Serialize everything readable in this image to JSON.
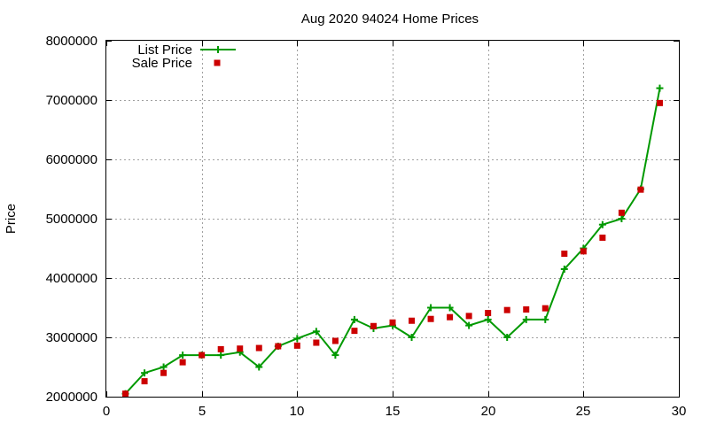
{
  "chart_data": {
    "type": "line",
    "title": "Aug 2020 94024 Home Prices",
    "xlabel": "",
    "ylabel": "Price",
    "xlim": [
      0,
      30
    ],
    "ylim": [
      2000000,
      8000000
    ],
    "xticks": [
      0,
      5,
      10,
      15,
      20,
      25,
      30
    ],
    "yticks": [
      2000000,
      3000000,
      4000000,
      5000000,
      6000000,
      7000000,
      8000000
    ],
    "grid": true,
    "legend_position": "top-left",
    "series": [
      {
        "name": "List Price",
        "style": "line-points",
        "marker": "plus",
        "color": "#009900",
        "x": [
          1,
          2,
          3,
          4,
          5,
          6,
          7,
          8,
          9,
          10,
          11,
          12,
          13,
          14,
          15,
          16,
          17,
          18,
          19,
          20,
          21,
          22,
          23,
          24,
          25,
          26,
          27,
          28,
          29
        ],
        "values": [
          2050000,
          2400000,
          2500000,
          2700000,
          2700000,
          2700000,
          2750000,
          2500000,
          2850000,
          2980000,
          3100000,
          2700000,
          3300000,
          3150000,
          3200000,
          3000000,
          3500000,
          3500000,
          3200000,
          3300000,
          3000000,
          3300000,
          3300000,
          4150000,
          4500000,
          4900000,
          5000000,
          5500000,
          7200000
        ]
      },
      {
        "name": "Sale Price",
        "style": "points",
        "marker": "square",
        "color": "#cc0000",
        "x": [
          1,
          2,
          3,
          4,
          5,
          6,
          7,
          8,
          9,
          10,
          11,
          12,
          13,
          14,
          15,
          16,
          17,
          18,
          19,
          20,
          21,
          22,
          23,
          24,
          25,
          26,
          27,
          28,
          29
        ],
        "values": [
          2050000,
          2260000,
          2400000,
          2580000,
          2700000,
          2800000,
          2810000,
          2820000,
          2850000,
          2860000,
          2910000,
          2940000,
          3110000,
          3190000,
          3250000,
          3280000,
          3310000,
          3340000,
          3360000,
          3410000,
          3460000,
          3470000,
          3490000,
          4410000,
          4450000,
          4680000,
          5100000,
          5490000,
          6950000
        ]
      }
    ]
  }
}
